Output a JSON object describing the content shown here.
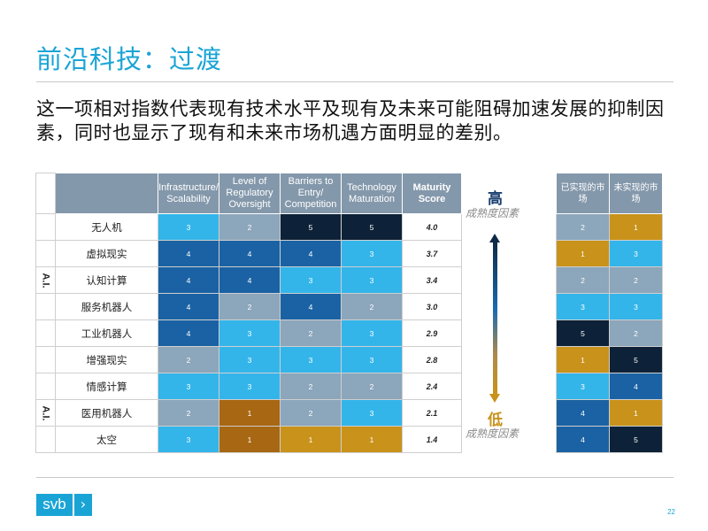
{
  "title": "前沿科技：过渡",
  "description": "这一项相对指数代表现有技术水平及现有及未来可能阻碍加速发展的抑制因素，同时也显示了现有和未来市场机遇方面明显的差别。",
  "main_table": {
    "headers": [
      "Infrastructure/ Scalability",
      "Level of Regulatory Oversight",
      "Barriers to Entry/ Competition",
      "Technology Maturation",
      "Maturity Score"
    ],
    "group_label": "A.I.",
    "rows": [
      {
        "label": "无人机",
        "values": [
          3,
          2,
          5,
          5
        ],
        "score": "4.0"
      },
      {
        "label": "虚拟现实",
        "values": [
          4,
          4,
          4,
          3
        ],
        "score": "3.7"
      },
      {
        "label": "认知计算",
        "values": [
          4,
          4,
          3,
          3
        ],
        "score": "3.4"
      },
      {
        "label": "服务机器人",
        "values": [
          4,
          2,
          4,
          2
        ],
        "score": "3.0"
      },
      {
        "label": "工业机器人",
        "values": [
          4,
          3,
          2,
          3
        ],
        "score": "2.9"
      },
      {
        "label": "增强现实",
        "values": [
          2,
          3,
          3,
          3
        ],
        "score": "2.8"
      },
      {
        "label": "情感计算",
        "values": [
          3,
          3,
          2,
          2
        ],
        "score": "2.4"
      },
      {
        "label": "医用机器人",
        "values": [
          2,
          1,
          2,
          3
        ],
        "score": "2.1"
      },
      {
        "label": "太空",
        "values": [
          3,
          1,
          1,
          1
        ],
        "score": "1.4"
      }
    ]
  },
  "scale": {
    "high": "高",
    "high_sub": "成熟度因素",
    "low": "低",
    "low_sub": "成熟度因素"
  },
  "market_table": {
    "headers": [
      "已实现的市场",
      "未实现的市场"
    ],
    "rows": [
      [
        2,
        1
      ],
      [
        1,
        3
      ],
      [
        2,
        2
      ],
      [
        3,
        3
      ],
      [
        5,
        2
      ],
      [
        1,
        5
      ],
      [
        3,
        4
      ],
      [
        4,
        1
      ],
      [
        4,
        5
      ]
    ]
  },
  "colors": {
    "1": "#c8921b",
    "2": "#8ca6bb",
    "3": "#33b5ea",
    "4": "#1a62a3",
    "5": "#0d2238",
    "reg1": "#a86712",
    "accent": "#1aa4d6"
  },
  "logo": {
    "text": "svb",
    "chevron": "›"
  },
  "page_number": "22"
}
